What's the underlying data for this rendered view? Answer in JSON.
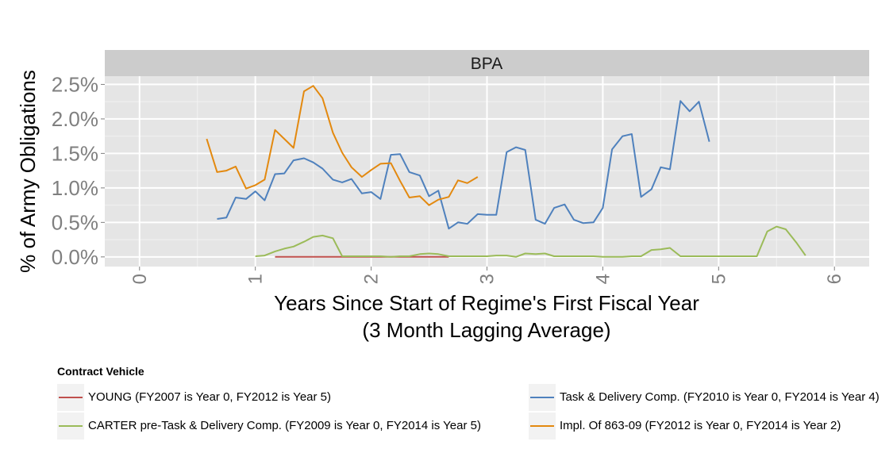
{
  "chart_data": {
    "type": "line",
    "facet_title": "BPA",
    "xlabel_line1": "Years Since Start of Regime's First Fiscal Year",
    "xlabel_line2": "(3 Month Lagging Average)",
    "ylabel": "% of Army Obligations",
    "xlim": [
      -0.3,
      6.3
    ],
    "ylim": [
      -0.14,
      2.62
    ],
    "x_ticks": [
      0,
      1,
      2,
      3,
      4,
      5,
      6
    ],
    "x_tick_labels": [
      "0",
      "1",
      "2",
      "3",
      "4",
      "5",
      "6"
    ],
    "y_ticks": [
      0,
      0.5,
      1.0,
      1.5,
      2.0,
      2.5
    ],
    "y_tick_labels": [
      "0.0%",
      "0.5%",
      "1.0%",
      "1.5%",
      "2.0%",
      "2.5%"
    ],
    "grid": true,
    "legend_title": "Contract Vehicle",
    "legend_position": "bottom",
    "series": [
      {
        "name": "YOUNG (FY2007 is Year 0, FY2012 is Year 5)",
        "color": "#c0504d",
        "x": [
          1.17,
          1.25,
          1.33,
          1.42,
          1.5,
          1.58,
          1.67,
          1.75,
          1.83,
          1.92,
          2.0,
          2.08,
          2.17,
          2.25,
          2.33,
          2.42,
          2.5,
          2.58,
          2.67
        ],
        "y": [
          0,
          0,
          0,
          0,
          0,
          0,
          0,
          0,
          0,
          0,
          0,
          0,
          0,
          0,
          0,
          0,
          0,
          0,
          0
        ]
      },
      {
        "name": "Task & Delivery Comp. (FY2010 is Year 0, FY2014 is Year 4)",
        "color": "#4f81bd",
        "x": [
          0.67,
          0.75,
          0.83,
          0.92,
          1.0,
          1.08,
          1.17,
          1.25,
          1.33,
          1.42,
          1.5,
          1.58,
          1.67,
          1.75,
          1.83,
          1.92,
          2.0,
          2.08,
          2.17,
          2.25,
          2.33,
          2.42,
          2.5,
          2.58,
          2.67,
          2.75,
          2.83,
          2.92,
          3.0,
          3.08,
          3.17,
          3.25,
          3.33,
          3.42,
          3.5,
          3.58,
          3.67,
          3.75,
          3.83,
          3.92,
          4.0,
          4.08,
          4.17,
          4.25,
          4.33,
          4.42,
          4.5,
          4.58,
          4.67,
          4.75,
          4.83,
          4.92
        ],
        "y": [
          0.55,
          0.57,
          0.86,
          0.84,
          0.95,
          0.82,
          1.2,
          1.21,
          1.4,
          1.43,
          1.37,
          1.28,
          1.12,
          1.08,
          1.13,
          0.92,
          0.94,
          0.84,
          1.48,
          1.49,
          1.23,
          1.18,
          0.88,
          0.96,
          0.41,
          0.5,
          0.48,
          0.62,
          0.61,
          0.61,
          1.52,
          1.59,
          1.55,
          0.54,
          0.48,
          0.71,
          0.76,
          0.54,
          0.49,
          0.5,
          0.71,
          1.56,
          1.75,
          1.78,
          0.87,
          0.98,
          1.3,
          1.27,
          2.26,
          2.11,
          2.25,
          1.67
        ]
      },
      {
        "name": "CARTER pre-Task & Delivery Comp. (FY2009 is Year 0, FY2014 is Year 5)",
        "color": "#9bbb59",
        "x": [
          1.0,
          1.08,
          1.17,
          1.25,
          1.33,
          1.42,
          1.5,
          1.58,
          1.67,
          1.75,
          1.83,
          1.92,
          2.0,
          2.08,
          2.17,
          2.25,
          2.33,
          2.42,
          2.5,
          2.58,
          2.67,
          2.75,
          2.83,
          2.92,
          3.0,
          3.08,
          3.17,
          3.25,
          3.33,
          3.42,
          3.5,
          3.58,
          3.67,
          3.75,
          3.83,
          3.92,
          4.0,
          4.08,
          4.17,
          4.25,
          4.33,
          4.42,
          4.5,
          4.58,
          4.67,
          4.75,
          4.83,
          4.92,
          5.0,
          5.08,
          5.17,
          5.25,
          5.33,
          5.42,
          5.5,
          5.58,
          5.67,
          5.75
        ],
        "y": [
          0.01,
          0.02,
          0.08,
          0.12,
          0.15,
          0.22,
          0.29,
          0.31,
          0.27,
          0.01,
          0.01,
          0.01,
          0.01,
          0.01,
          0.0,
          0.01,
          0.01,
          0.04,
          0.05,
          0.04,
          0.01,
          0.01,
          0.01,
          0.01,
          0.01,
          0.02,
          0.02,
          0.0,
          0.05,
          0.04,
          0.05,
          0.01,
          0.01,
          0.01,
          0.01,
          0.01,
          0.0,
          0.0,
          0.0,
          0.01,
          0.01,
          0.1,
          0.11,
          0.13,
          0.01,
          0.01,
          0.01,
          0.01,
          0.01,
          0.01,
          0.01,
          0.01,
          0.01,
          0.37,
          0.44,
          0.4,
          0.21,
          0.02
        ]
      },
      {
        "name": "Impl. Of 863-09 (FY2012 is Year 0, FY2014 is Year 2)",
        "color": "#e3890f",
        "x": [
          0.58,
          0.67,
          0.75,
          0.83,
          0.92,
          1.0,
          1.08,
          1.17,
          1.25,
          1.33,
          1.42,
          1.5,
          1.58,
          1.67,
          1.75,
          1.83,
          1.92,
          2.0,
          2.08,
          2.17,
          2.25,
          2.33,
          2.42,
          2.5,
          2.58,
          2.67,
          2.75,
          2.83,
          2.92
        ],
        "y": [
          1.71,
          1.23,
          1.25,
          1.31,
          0.99,
          1.04,
          1.12,
          1.84,
          1.71,
          1.58,
          2.4,
          2.48,
          2.3,
          1.8,
          1.51,
          1.3,
          1.16,
          1.26,
          1.35,
          1.36,
          1.1,
          0.86,
          0.88,
          0.75,
          0.83,
          0.87,
          1.11,
          1.07,
          1.16
        ]
      }
    ]
  }
}
